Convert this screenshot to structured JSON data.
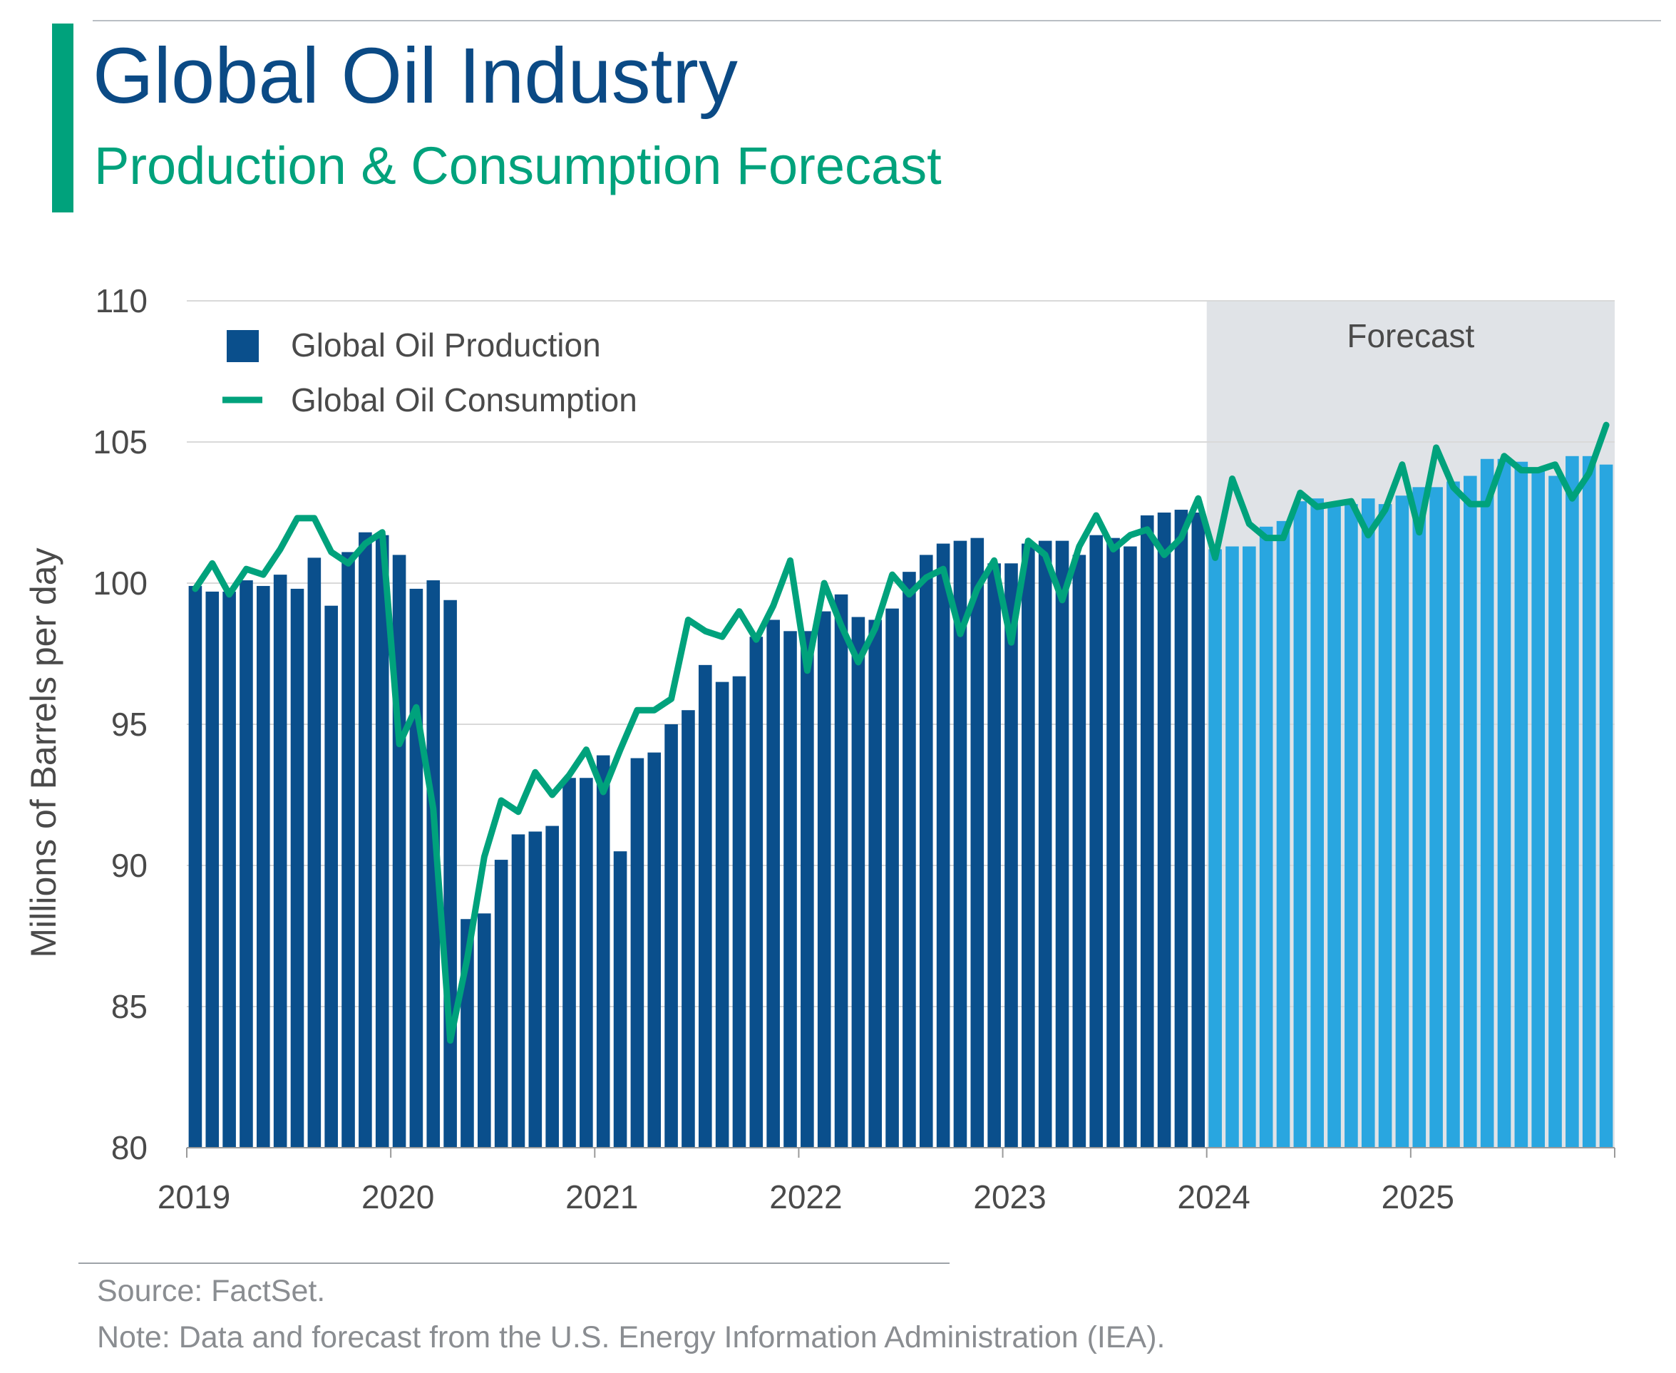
{
  "header": {
    "title": "Global Oil Industry",
    "subtitle": "Production & Consumption Forecast"
  },
  "footer": {
    "source": "Source: FactSet.",
    "note": "Note: Data and forecast from the U.S. Energy Information Administration (IEA)."
  },
  "colors": {
    "actual_bar": "#0a4f8c",
    "forecast_bar": "#29a6e0",
    "line": "#00a27c",
    "forecast_band": "#e0e3e7",
    "accent": "#00a27c",
    "title": "#0b4a85"
  },
  "chart_data": {
    "type": "bar+line",
    "ylabel": "Millions of Barrels per day",
    "ylim": [
      80,
      110
    ],
    "yticks": [
      80,
      85,
      90,
      95,
      100,
      105,
      110
    ],
    "xlim": [
      2019,
      2026
    ],
    "xtick_labels": [
      "2019",
      "2020",
      "2021",
      "2022",
      "2023",
      "2024",
      "2025"
    ],
    "forecast_label": "Forecast",
    "forecast_start_index": 60,
    "grid": true,
    "legend": {
      "position": "top-left"
    },
    "series": [
      {
        "name": "Global Oil Production",
        "kind": "bar",
        "values": [
          99.9,
          99.7,
          99.7,
          100.1,
          99.9,
          100.3,
          99.8,
          100.9,
          99.2,
          101.1,
          101.8,
          101.7,
          101.0,
          99.8,
          100.1,
          99.4,
          88.1,
          88.3,
          90.2,
          91.1,
          91.2,
          91.4,
          93.1,
          93.1,
          93.9,
          90.5,
          93.8,
          94.0,
          95.0,
          95.5,
          97.1,
          96.5,
          96.7,
          98.1,
          98.7,
          98.3,
          98.3,
          99.0,
          99.6,
          98.8,
          98.7,
          99.1,
          100.4,
          101.0,
          101.4,
          101.5,
          101.6,
          100.7,
          100.7,
          101.4,
          101.5,
          101.5,
          101.0,
          101.7,
          101.6,
          101.3,
          102.4,
          102.5,
          102.6,
          102.5,
          101.2,
          101.3,
          101.3,
          102.0,
          102.2,
          102.9,
          103.0,
          102.8,
          102.8,
          103.0,
          102.8,
          103.1,
          103.4,
          103.4,
          103.6,
          103.8,
          104.4,
          104.4,
          104.3,
          104.1,
          103.8,
          104.5,
          104.5,
          104.2
        ]
      },
      {
        "name": "Global Oil Consumption",
        "kind": "line",
        "values": [
          99.8,
          100.7,
          99.6,
          100.5,
          100.3,
          101.2,
          102.3,
          102.3,
          101.1,
          100.7,
          101.4,
          101.8,
          94.3,
          95.6,
          92.0,
          83.8,
          86.7,
          90.3,
          92.3,
          91.9,
          93.3,
          92.5,
          93.2,
          94.1,
          92.6,
          94.1,
          95.5,
          95.5,
          95.9,
          98.7,
          98.3,
          98.1,
          99.0,
          98.0,
          99.2,
          100.8,
          96.9,
          100.0,
          98.5,
          97.2,
          98.4,
          100.3,
          99.6,
          100.2,
          100.5,
          98.2,
          99.8,
          100.8,
          97.9,
          101.5,
          101.0,
          99.4,
          101.3,
          102.4,
          101.2,
          101.7,
          101.9,
          101.0,
          101.6,
          103.0,
          100.9,
          103.7,
          102.1,
          101.6,
          101.6,
          103.2,
          102.7,
          102.8,
          102.9,
          101.7,
          102.6,
          104.2,
          101.8,
          104.8,
          103.4,
          102.8,
          102.8,
          104.5,
          104.0,
          104.0,
          104.2,
          103.0,
          103.9,
          105.6
        ]
      }
    ]
  }
}
